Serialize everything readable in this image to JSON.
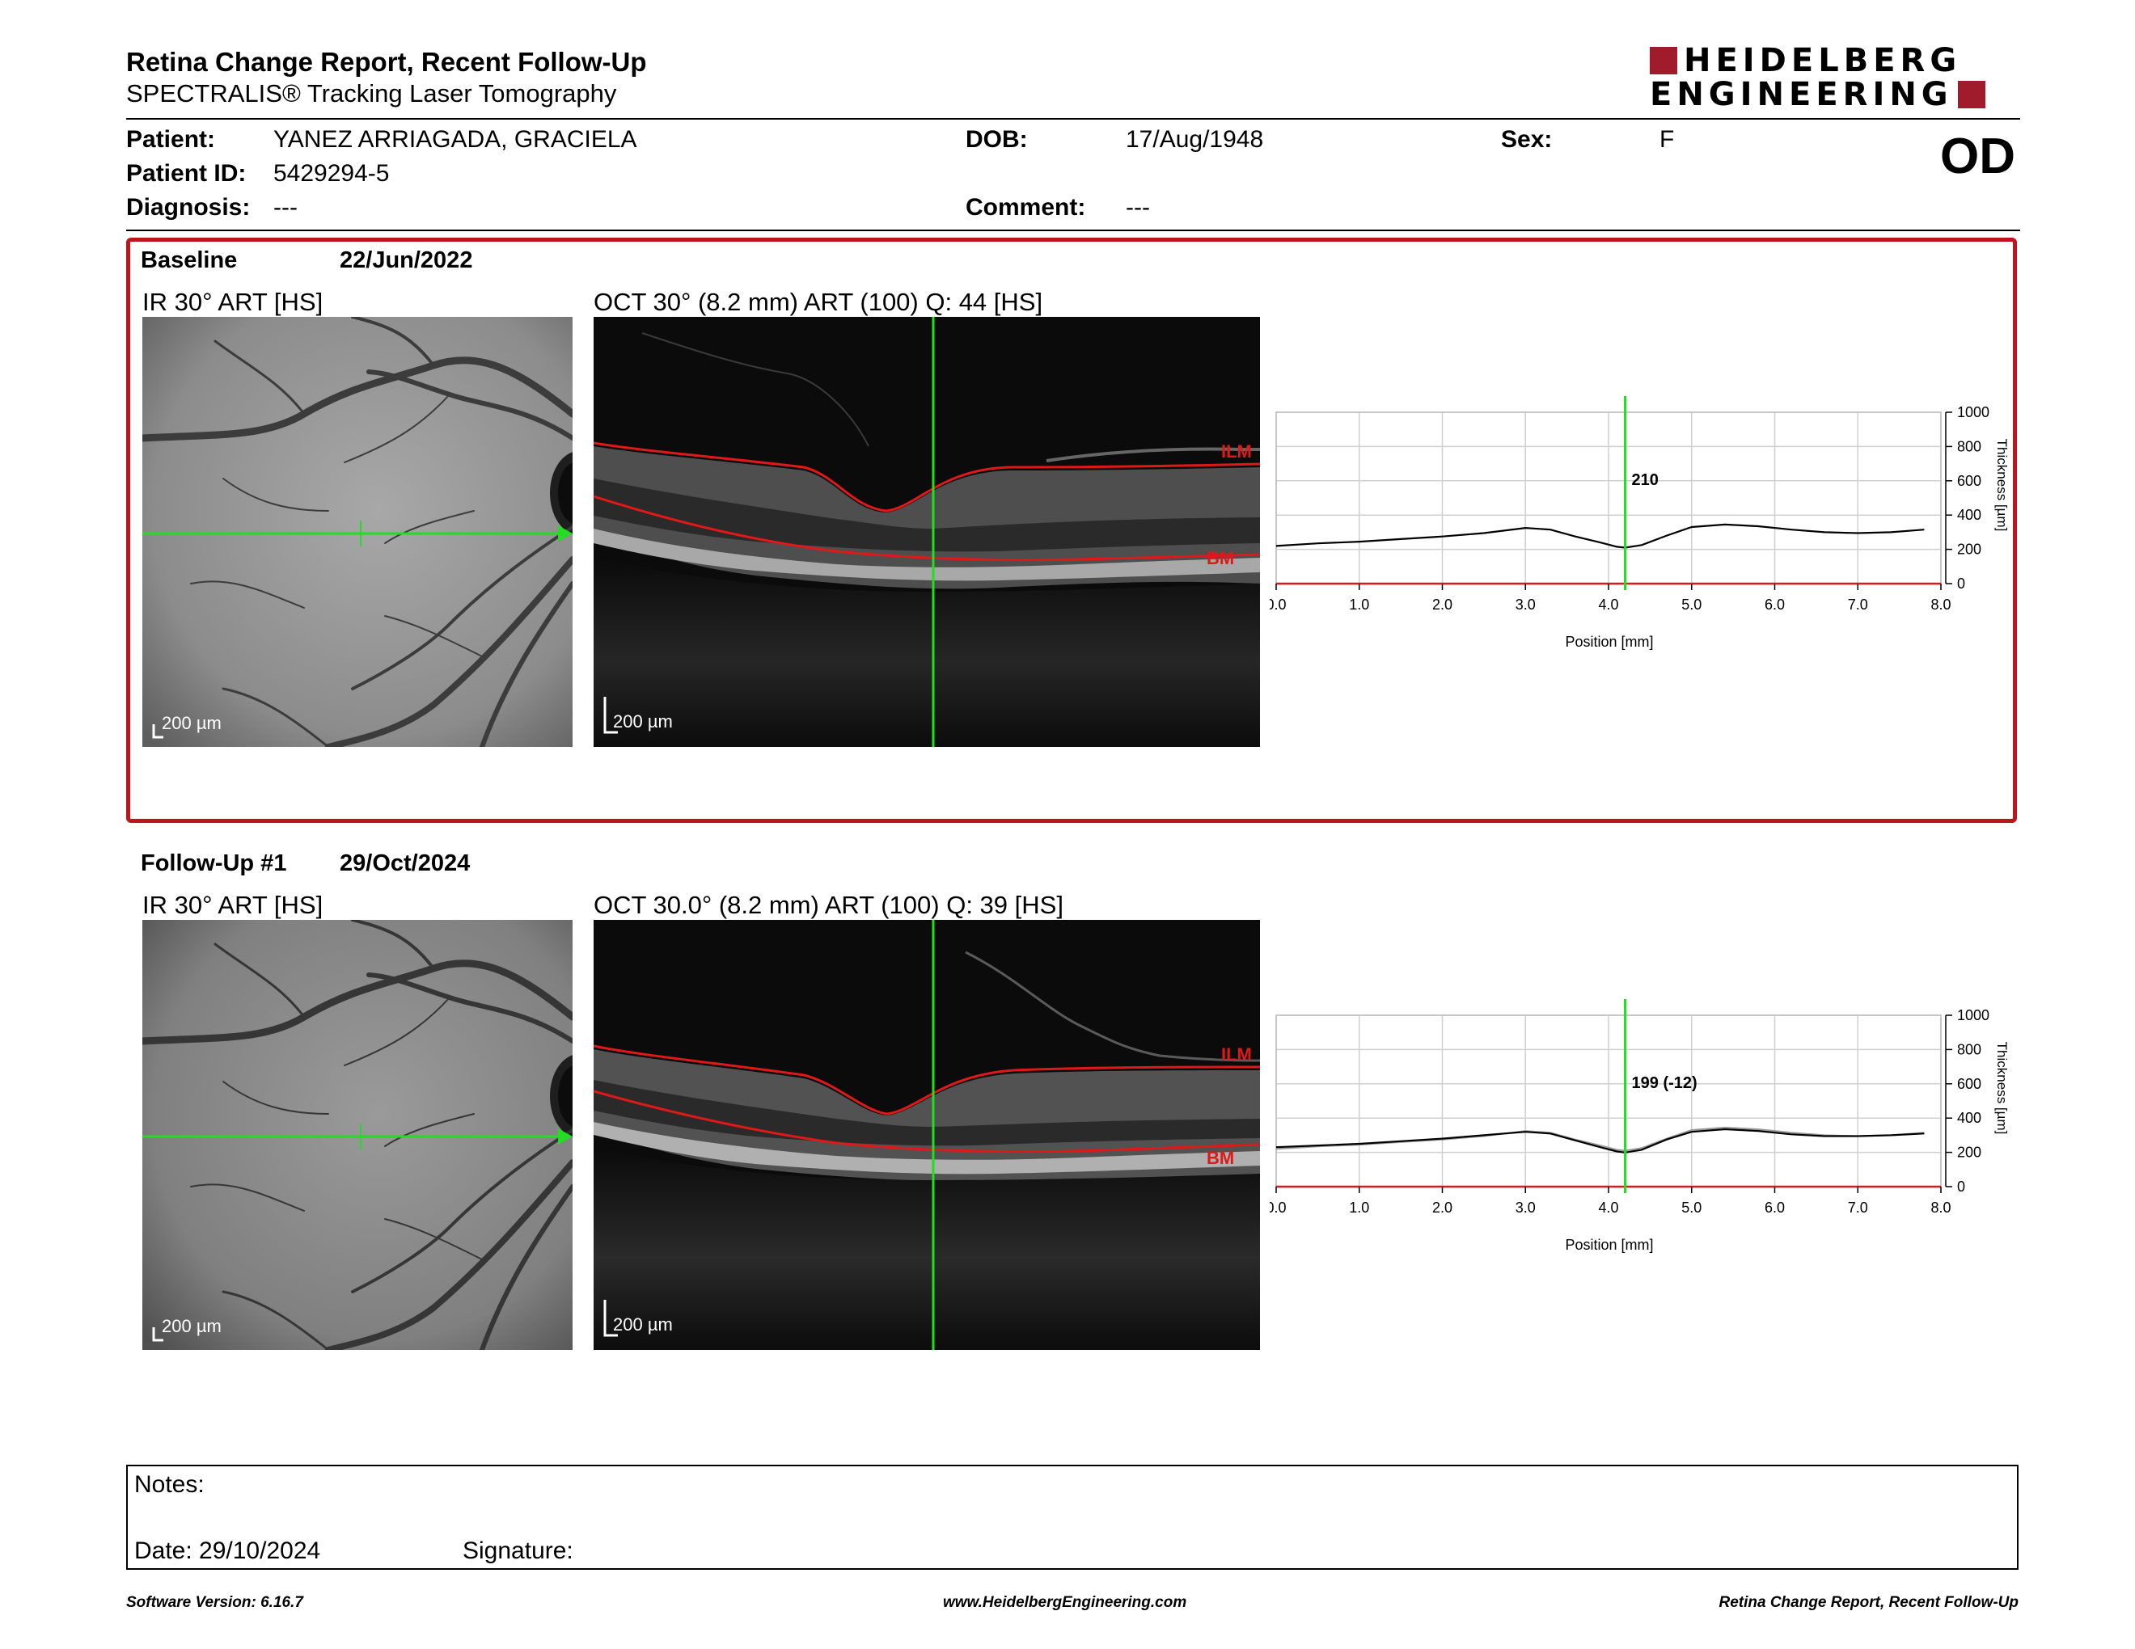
{
  "header": {
    "title": "Retina Change Report, Recent Follow-Up",
    "subtitle": "SPECTRALIS® Tracking Laser Tomography",
    "logo_line1": "HEIDELBERG",
    "logo_line2": "ENGINEERING",
    "eye": "OD"
  },
  "patient": {
    "name_label": "Patient:",
    "name": "YANEZ ARRIAGADA, GRACIELA",
    "id_label": "Patient ID:",
    "id": "5429294-5",
    "diagnosis_label": "Diagnosis:",
    "diagnosis": "---",
    "dob_label": "DOB:",
    "dob": "17/Aug/1948",
    "comment_label": "Comment:",
    "comment": "---",
    "sex_label": "Sex:",
    "sex": "F"
  },
  "sections": [
    {
      "label": "Baseline",
      "date": "22/Jun/2022",
      "ir_title": "IR 30° ART [HS]",
      "oct_title": "OCT 30° (8.2 mm) ART (100) Q: 44 [HS]",
      "scale_ir": "200 µm",
      "scale_oct": "200 µm",
      "layer_top": "ILM",
      "layer_bottom": "BM",
      "readout": "210"
    },
    {
      "label": "Follow-Up #1",
      "date": "29/Oct/2024",
      "ir_title": "IR 30° ART [HS]",
      "oct_title": "OCT 30.0° (8.2 mm) ART (100) Q: 39 [HS]",
      "scale_ir": "200 µm",
      "scale_oct": "200 µm",
      "layer_top": "ILM",
      "layer_bottom": "BM",
      "readout": "199 (-12)"
    }
  ],
  "chart_data": [
    {
      "type": "line",
      "xlabel": "Position [mm]",
      "ylabel": "Thickness [µm]",
      "xlim": [
        0,
        8
      ],
      "ylim": [
        0,
        1000
      ],
      "xticks": [
        "0.0",
        "1.0",
        "2.0",
        "3.0",
        "4.0",
        "5.0",
        "6.0",
        "7.0",
        "8.0"
      ],
      "yticks": [
        "0",
        "200",
        "400",
        "600",
        "800",
        "1000"
      ],
      "grid": true,
      "marker_x": 4.2,
      "x": [
        0.0,
        0.5,
        1.0,
        1.5,
        2.0,
        2.5,
        3.0,
        3.3,
        3.6,
        3.9,
        4.1,
        4.2,
        4.4,
        4.7,
        5.0,
        5.4,
        5.8,
        6.2,
        6.6,
        7.0,
        7.4,
        7.8
      ],
      "series": [
        {
          "values": [
            220,
            235,
            245,
            260,
            275,
            295,
            325,
            315,
            275,
            240,
            215,
            210,
            225,
            280,
            330,
            345,
            335,
            315,
            300,
            295,
            300,
            315
          ]
        }
      ]
    },
    {
      "type": "line",
      "xlabel": "Position [mm]",
      "ylabel": "Thickness [µm]",
      "xlim": [
        0,
        8
      ],
      "ylim": [
        0,
        1000
      ],
      "xticks": [
        "0.0",
        "1.0",
        "2.0",
        "3.0",
        "4.0",
        "5.0",
        "6.0",
        "7.0",
        "8.0"
      ],
      "yticks": [
        "0",
        "200",
        "400",
        "600",
        "800",
        "1000"
      ],
      "grid": true,
      "marker_x": 4.2,
      "x": [
        0.0,
        0.5,
        1.0,
        1.5,
        2.0,
        2.5,
        3.0,
        3.3,
        3.6,
        3.9,
        4.1,
        4.2,
        4.4,
        4.7,
        5.0,
        5.4,
        5.8,
        6.2,
        6.6,
        7.0,
        7.4,
        7.8
      ],
      "series": [
        {
          "values": [
            230,
            240,
            250,
            265,
            280,
            300,
            320,
            310,
            270,
            230,
            205,
            199,
            215,
            275,
            320,
            335,
            325,
            305,
            295,
            295,
            300,
            310
          ]
        },
        {
          "values": [
            220,
            235,
            245,
            260,
            275,
            295,
            325,
            315,
            275,
            240,
            215,
            210,
            225,
            280,
            330,
            345,
            335,
            315,
            300,
            295,
            300,
            315
          ]
        }
      ]
    }
  ],
  "notes": {
    "notes_label": "Notes:",
    "date_label": "Date: 29/10/2024",
    "signature_label": "Signature:"
  },
  "footer": {
    "left": "Software Version: 6.16.7",
    "center": "www.HeidelbergEngineering.com",
    "right": "Retina Change Report, Recent Follow-Up"
  },
  "colors": {
    "accent_red": "#c0141c",
    "logo_red": "#a01c2c",
    "scan_green": "#22dd22",
    "layer_red": "#e01818"
  }
}
